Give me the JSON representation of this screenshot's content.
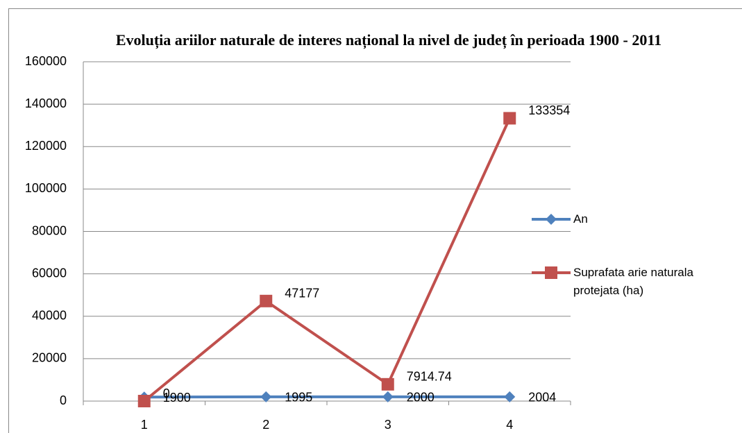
{
  "chart_data": {
    "type": "line",
    "title": "Evoluția ariilor naturale de interes național la nivel de județ în perioada 1900 - 2011",
    "categories": [
      1,
      2,
      3,
      4
    ],
    "series": [
      {
        "name": "An",
        "color": "#4f81bd",
        "marker": "diamond",
        "values": [
          1900,
          1995,
          2000,
          2004
        ]
      },
      {
        "name": "Suprafata arie naturala protejata (ha)",
        "color": "#c0504d",
        "marker": "square",
        "values": [
          0,
          47177,
          7914.74,
          133354
        ]
      }
    ],
    "ylim": [
      0,
      160000
    ],
    "yticks": [
      0,
      20000,
      40000,
      60000,
      80000,
      100000,
      120000,
      140000,
      160000
    ],
    "grid": true,
    "legend": "right",
    "data_labels": true
  }
}
